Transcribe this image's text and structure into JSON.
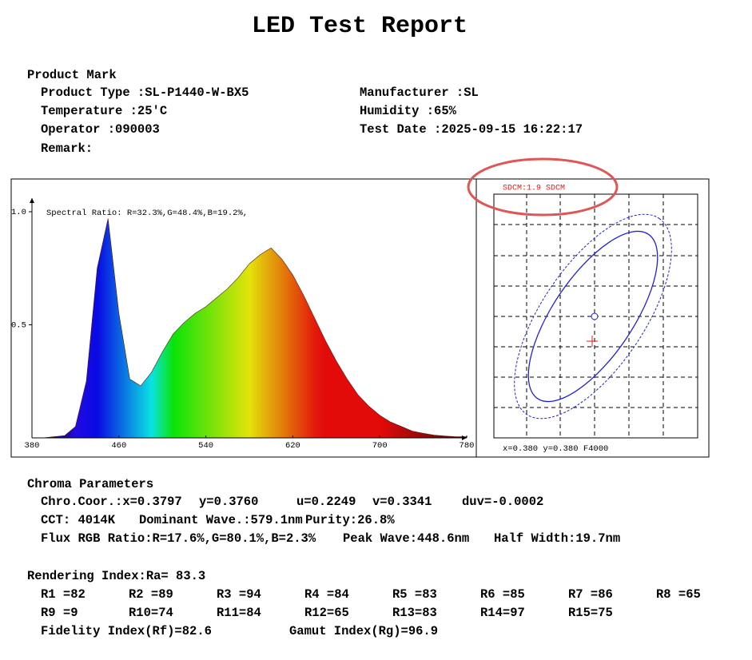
{
  "title": "LED Test Report",
  "product_mark": {
    "heading": "Product Mark",
    "fields": [
      [
        "Product Type :SL-P1440-W-BX5",
        "Manufacturer :SL"
      ],
      [
        "Temperature :25'C",
        "Humidity :65%"
      ],
      [
        "Operator :090003",
        "Test Date :2025-09-15 16:22:17"
      ],
      [
        "Remark:"
      ]
    ]
  },
  "spectrum": {
    "type": "area",
    "annotation": "Spectral Ratio:  R=32.3%,G=48.4%,B=19.2%,",
    "x": [
      380,
      390,
      400,
      410,
      420,
      430,
      440,
      450,
      460,
      470,
      480,
      490,
      500,
      510,
      520,
      530,
      540,
      550,
      560,
      570,
      580,
      590,
      600,
      610,
      620,
      630,
      640,
      650,
      660,
      670,
      680,
      690,
      700,
      710,
      720,
      730,
      740,
      750,
      760,
      770,
      780
    ],
    "values": [
      0,
      0,
      0.005,
      0.01,
      0.05,
      0.25,
      0.75,
      0.97,
      0.55,
      0.26,
      0.23,
      0.29,
      0.38,
      0.46,
      0.51,
      0.55,
      0.58,
      0.62,
      0.66,
      0.71,
      0.77,
      0.81,
      0.84,
      0.79,
      0.72,
      0.63,
      0.53,
      0.43,
      0.34,
      0.26,
      0.19,
      0.14,
      0.1,
      0.07,
      0.05,
      0.03,
      0.02,
      0.012,
      0.008,
      0.005,
      0.005
    ],
    "xlim": [
      380,
      780
    ],
    "ylim": [
      0,
      1.06
    ],
    "xticks": [
      380,
      460,
      540,
      620,
      700,
      780
    ],
    "yticks": [
      {
        "value": 1,
        "label": "1.0"
      },
      0.5
    ]
  },
  "chromaticity": {
    "label": "SDCM:1.9 SDCM",
    "coordinates": "x=0.380 y=0.380 F4000"
  },
  "chroma_parameters": {
    "heading": "Chroma Parameters",
    "lines": [
      [
        "Chro.Coor.:x=0.3797",
        "y=0.3760",
        "u=0.2249",
        "v=0.3341",
        "duv=-0.0002"
      ],
      [
        "CCT: 4014K",
        "Dominant Wave.:579.1nm",
        "Purity:26.8%"
      ],
      [
        "Flux RGB Ratio:R=17.6%,G=80.1%,B=2.3%",
        "Peak Wave:448.6nm",
        "Half Width:19.7nm"
      ]
    ]
  },
  "rendering_index": {
    "heading": "Rendering Index:Ra= 83.3",
    "rows": [
      [
        "R1 =82",
        "R2 =89",
        "R3 =94",
        "R4 =84",
        "R5 =83",
        "R6 =85",
        "R7 =86",
        "R8 =65"
      ],
      [
        "R9 =9",
        "R10=74",
        "R11=84",
        "R12=65",
        "R13=83",
        "R14=97",
        "R15=75"
      ],
      [
        "Fidelity Index(Rf)=82.6",
        "Gamut Index(Rg)=96.9"
      ]
    ]
  }
}
